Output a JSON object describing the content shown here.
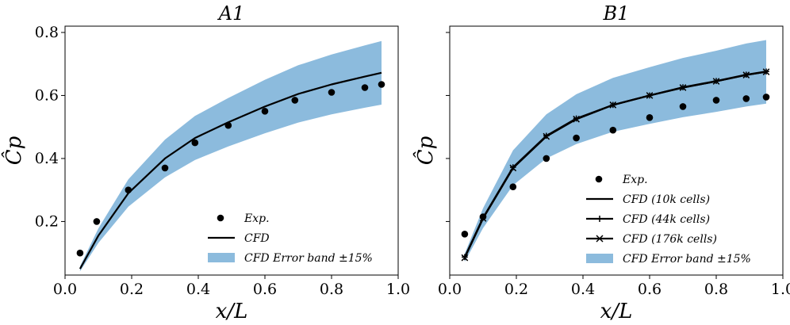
{
  "chart_data": [
    {
      "type": "line",
      "title": "A1",
      "xlabel": "x/L",
      "ylabel": "Ĉp",
      "xlim": [
        0.0,
        1.0
      ],
      "ylim": [
        0.03,
        0.82
      ],
      "xticks": [
        "0.0",
        "0.2",
        "0.4",
        "0.6",
        "0.8",
        "1.0"
      ],
      "yticks": [
        "0.2",
        "0.4",
        "0.6",
        "0.8"
      ],
      "legend_position": "lower-right",
      "grid": false,
      "series": [
        {
          "name": "Exp.",
          "kind": "markers",
          "marker": "circle",
          "x": [
            0.045,
            0.095,
            0.19,
            0.3,
            0.39,
            0.49,
            0.6,
            0.69,
            0.8,
            0.9,
            0.95
          ],
          "y": [
            0.1,
            0.2,
            0.3,
            0.37,
            0.45,
            0.505,
            0.55,
            0.585,
            0.61,
            0.625,
            0.635
          ]
        },
        {
          "name": "CFD",
          "kind": "line",
          "x": [
            0.045,
            0.1,
            0.19,
            0.3,
            0.39,
            0.49,
            0.6,
            0.7,
            0.8,
            0.9,
            0.95
          ],
          "y": [
            0.05,
            0.155,
            0.29,
            0.4,
            0.465,
            0.515,
            0.565,
            0.605,
            0.635,
            0.66,
            0.672
          ]
        },
        {
          "name": "CFD Error band ±15%",
          "kind": "band",
          "x": [
            0.045,
            0.1,
            0.19,
            0.3,
            0.39,
            0.49,
            0.6,
            0.7,
            0.8,
            0.9,
            0.95
          ],
          "lower": [
            0.042,
            0.132,
            0.247,
            0.34,
            0.395,
            0.438,
            0.48,
            0.514,
            0.54,
            0.561,
            0.571
          ],
          "upper": [
            0.058,
            0.178,
            0.334,
            0.46,
            0.535,
            0.592,
            0.65,
            0.696,
            0.73,
            0.759,
            0.773
          ]
        }
      ],
      "colors": {
        "band": "#8cbbdd",
        "line": "#000000",
        "markers": "#000000"
      }
    },
    {
      "type": "line",
      "title": "B1",
      "xlabel": "x/L",
      "ylabel": "Ĉp",
      "xlim": [
        0.0,
        1.0
      ],
      "ylim": [
        0.03,
        0.82
      ],
      "xticks": [
        "0.0",
        "0.2",
        "0.4",
        "0.6",
        "0.8",
        "1.0"
      ],
      "yticks": [],
      "legend_position": "lower-right",
      "grid": false,
      "series": [
        {
          "name": "Exp.",
          "kind": "markers",
          "marker": "circle",
          "x": [
            0.045,
            0.1,
            0.19,
            0.29,
            0.38,
            0.49,
            0.6,
            0.7,
            0.8,
            0.89,
            0.95
          ],
          "y": [
            0.16,
            0.215,
            0.31,
            0.4,
            0.465,
            0.49,
            0.53,
            0.565,
            0.585,
            0.59,
            0.595
          ]
        },
        {
          "name": "CFD (10k cells)",
          "kind": "line",
          "x": [
            0.045,
            0.1,
            0.19,
            0.29,
            0.38,
            0.49,
            0.6,
            0.7,
            0.8,
            0.89,
            0.95
          ],
          "y": [
            0.085,
            0.21,
            0.37,
            0.47,
            0.525,
            0.57,
            0.6,
            0.625,
            0.645,
            0.665,
            0.675
          ]
        },
        {
          "name": "CFD (44k cells)",
          "kind": "line",
          "marker": "plus",
          "x": [
            0.045,
            0.1,
            0.19,
            0.29,
            0.38,
            0.49,
            0.6,
            0.7,
            0.8,
            0.89,
            0.95
          ],
          "y": [
            0.087,
            0.212,
            0.372,
            0.472,
            0.527,
            0.57,
            0.6,
            0.626,
            0.646,
            0.666,
            0.676
          ]
        },
        {
          "name": "CFD (176k cells)",
          "kind": "line",
          "marker": "x",
          "x": [
            0.045,
            0.1,
            0.19,
            0.29,
            0.38,
            0.49,
            0.6,
            0.7,
            0.8,
            0.89,
            0.95
          ],
          "y": [
            0.085,
            0.21,
            0.37,
            0.47,
            0.525,
            0.57,
            0.6,
            0.625,
            0.645,
            0.665,
            0.675
          ]
        },
        {
          "name": "CFD Error band ±15%",
          "kind": "band",
          "x": [
            0.045,
            0.1,
            0.19,
            0.29,
            0.38,
            0.49,
            0.6,
            0.7,
            0.8,
            0.89,
            0.95
          ],
          "lower": [
            0.072,
            0.179,
            0.315,
            0.4,
            0.446,
            0.485,
            0.51,
            0.531,
            0.548,
            0.565,
            0.574
          ],
          "upper": [
            0.098,
            0.242,
            0.426,
            0.54,
            0.604,
            0.656,
            0.69,
            0.719,
            0.742,
            0.765,
            0.776
          ]
        }
      ],
      "colors": {
        "band": "#8cbbdd",
        "line": "#000000",
        "markers": "#000000"
      }
    }
  ]
}
